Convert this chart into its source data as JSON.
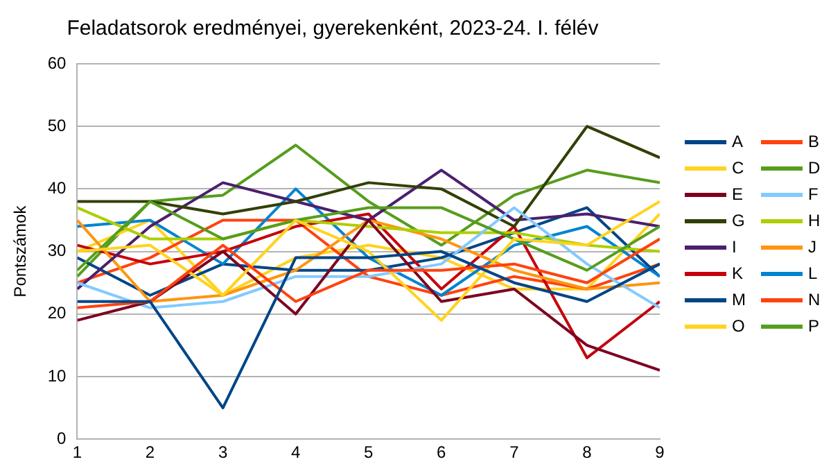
{
  "chart_data": {
    "type": "line",
    "title": "Feladatsorok eredményei, gyerekenként, 2023-24. I. félév",
    "ylabel": "Pontszámok",
    "x": [
      1,
      2,
      3,
      4,
      5,
      6,
      7,
      8,
      9
    ],
    "xlim": [
      1,
      9
    ],
    "xticks": [
      1,
      2,
      3,
      4,
      5,
      6,
      7,
      8,
      9
    ],
    "ylim": [
      0,
      60
    ],
    "yticks": [
      0,
      10,
      20,
      30,
      40,
      50,
      60
    ],
    "grid": "y",
    "legend": "right",
    "marker": "none",
    "line_style": "solid",
    "series": [
      {
        "name": "A",
        "color": "#004586",
        "values": [
          22,
          22,
          5,
          29,
          29,
          30,
          25,
          22,
          28
        ]
      },
      {
        "name": "B",
        "color": "#ff420e",
        "values": [
          21,
          22,
          31,
          22,
          27,
          27,
          28,
          25,
          32
        ]
      },
      {
        "name": "C",
        "color": "#ffd320",
        "values": [
          30,
          31,
          23,
          35,
          30,
          19,
          32,
          31,
          38
        ]
      },
      {
        "name": "D",
        "color": "#579d1c",
        "values": [
          27,
          38,
          32,
          35,
          37,
          37,
          32,
          27,
          34
        ]
      },
      {
        "name": "E",
        "color": "#7e0021",
        "values": [
          19,
          22,
          30,
          20,
          35,
          22,
          24,
          15,
          11
        ]
      },
      {
        "name": "F",
        "color": "#83caff",
        "values": [
          25,
          21,
          22,
          26,
          26,
          28,
          37,
          28,
          21
        ]
      },
      {
        "name": "G",
        "color": "#314004",
        "values": [
          38,
          38,
          36,
          38,
          41,
          40,
          34,
          50,
          45
        ]
      },
      {
        "name": "H",
        "color": "#aecf00",
        "values": [
          37,
          32,
          32,
          35,
          34,
          33,
          33,
          31,
          30
        ]
      },
      {
        "name": "I",
        "color": "#4b1f6f",
        "values": [
          24,
          34,
          41,
          38,
          35,
          43,
          35,
          36,
          34
        ]
      },
      {
        "name": "J",
        "color": "#ff950e",
        "values": [
          35,
          22,
          23,
          27,
          35,
          32,
          27,
          24,
          25
        ]
      },
      {
        "name": "K",
        "color": "#c5000b",
        "values": [
          31,
          28,
          30,
          34,
          36,
          24,
          34,
          13,
          22
        ]
      },
      {
        "name": "L",
        "color": "#0084d1",
        "values": [
          34,
          35,
          28,
          40,
          29,
          23,
          31,
          34,
          26
        ]
      },
      {
        "name": "M",
        "color": "#004586",
        "values": [
          29,
          23,
          28,
          27,
          27,
          29,
          33,
          37,
          26
        ]
      },
      {
        "name": "N",
        "color": "#ff420e",
        "values": [
          25,
          29,
          35,
          35,
          26,
          23,
          26,
          24,
          28
        ]
      },
      {
        "name": "O",
        "color": "#ffd320",
        "values": [
          30,
          35,
          23,
          29,
          31,
          29,
          24,
          24,
          36
        ]
      },
      {
        "name": "P",
        "color": "#579d1c",
        "values": [
          26,
          38,
          39,
          47,
          38,
          31,
          39,
          43,
          41
        ]
      }
    ]
  }
}
